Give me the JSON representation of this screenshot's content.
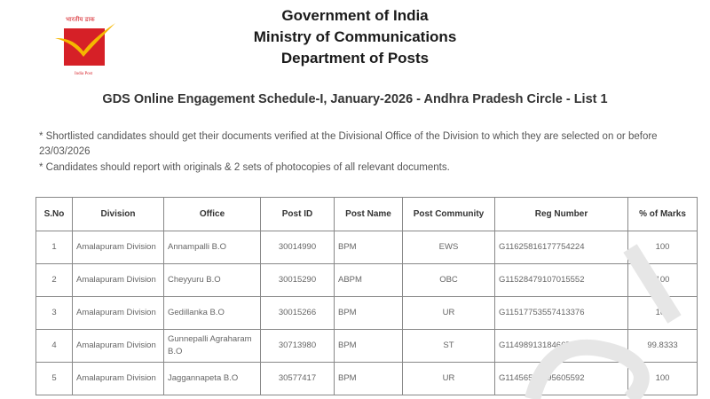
{
  "logo": {
    "hindi_text": "भारतीय डाक",
    "english_text": "India Post",
    "colors": {
      "red": "#d62027",
      "yellow": "#f5b700"
    }
  },
  "header": {
    "line1": "Government of India",
    "line2": "Ministry of Communications",
    "line3": "Department of Posts",
    "title": "GDS Online Engagement Schedule-I, January-2026 - Andhra Pradesh Circle - List 1"
  },
  "notes": [
    "* Shortlisted candidates should get their documents verified at the Divisional Office of the Division to which they are selected on or before 23/03/2026",
    "* Candidates should report with originals & 2 sets of photocopies of all relevant documents."
  ],
  "table": {
    "columns": [
      "S.No",
      "Division",
      "Office",
      "Post ID",
      "Post Name",
      "Post Community",
      "Reg Number",
      "% of Marks"
    ],
    "rows": [
      [
        "1",
        "Amalapuram Division",
        "Annampalli B.O",
        "30014990",
        "BPM",
        "EWS",
        "G11625816177754224",
        "100"
      ],
      [
        "2",
        "Amalapuram Division",
        "Cheyyuru B.O",
        "30015290",
        "ABPM",
        "OBC",
        "G11528479107015552",
        "100"
      ],
      [
        "3",
        "Amalapuram Division",
        "Gedillanka B.O",
        "30015266",
        "BPM",
        "UR",
        "G11517753557413376",
        "100"
      ],
      [
        "4",
        "Amalapuram Division",
        "Gunnepalli Agraharam B.O",
        "30713980",
        "BPM",
        "ST",
        "G11498913184667840",
        "99.8333"
      ],
      [
        "5",
        "Amalapuram Division",
        "Jaggannapeta B.O",
        "30577417",
        "BPM",
        "UR",
        "G11456547995605592",
        "100"
      ]
    ]
  }
}
